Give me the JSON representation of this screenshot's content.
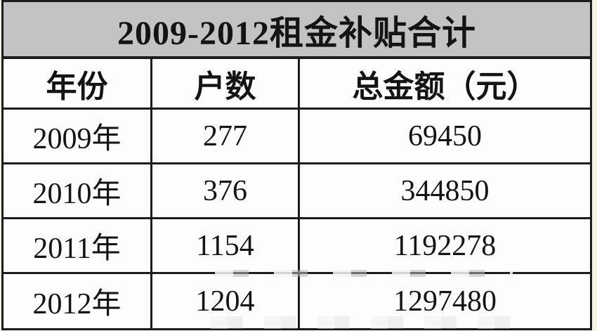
{
  "chart_data": {
    "type": "table",
    "title": "2009-2012租金补贴合计",
    "columns": [
      "年份",
      "户数",
      "总金额（元）"
    ],
    "rows": [
      [
        "2009年",
        277,
        69450
      ],
      [
        "2010年",
        376,
        344850
      ],
      [
        "2011年",
        1154,
        1192278
      ],
      [
        "2012年",
        1204,
        1297480
      ]
    ],
    "layout": {
      "title_bg_color": "#c3c3c3",
      "border_color": "#1c1c1c",
      "text_color": "#141414",
      "page_edge_color": "#f5f3e8",
      "column_width_ratio": [
        0.25,
        0.25,
        0.5
      ]
    }
  }
}
